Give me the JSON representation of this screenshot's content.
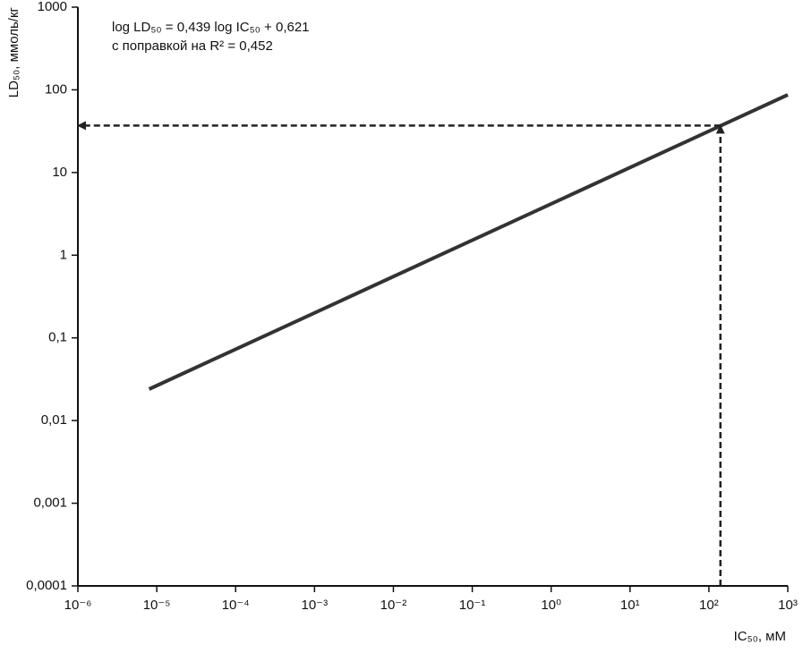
{
  "chart_data": {
    "type": "line",
    "annotation": [
      "log LD₅₀ = 0,439 log IC₅₀ + 0,621",
      "с поправкой на R² = 0,452"
    ],
    "x_label": "IC₅₀, мМ",
    "y_label": "LD₅₀, ммоль/кг",
    "x_scale": "log",
    "y_scale": "log",
    "grid": false,
    "color": "#333333",
    "x": [
      8e-06,
      1000
    ],
    "values": [
      0.024,
      87
    ],
    "arrow": {
      "x": 140,
      "y": 37
    },
    "xlim": [
      1e-06,
      1000
    ],
    "ylim": [
      0.0001,
      1000
    ],
    "xticks": [
      {
        "value": 1e-06,
        "label": "10⁻⁶"
      },
      {
        "value": 1e-05,
        "label": "10⁻⁵"
      },
      {
        "value": 0.0001,
        "label": "10⁻⁴"
      },
      {
        "value": 0.001,
        "label": "10⁻³"
      },
      {
        "value": 0.01,
        "label": "10⁻²"
      },
      {
        "value": 0.1,
        "label": "10⁻¹"
      },
      {
        "value": 1,
        "label": "10⁰"
      },
      {
        "value": 10,
        "label": "10¹"
      },
      {
        "value": 100,
        "label": "10²"
      },
      {
        "value": 1000,
        "label": "10³"
      }
    ],
    "yticks": [
      {
        "value": 0.0001,
        "label": "0,0001"
      },
      {
        "value": 0.001,
        "label": "0,001"
      },
      {
        "value": 0.01,
        "label": "0,01"
      },
      {
        "value": 0.1,
        "label": "0,1"
      },
      1,
      10,
      100,
      1000
    ]
  }
}
